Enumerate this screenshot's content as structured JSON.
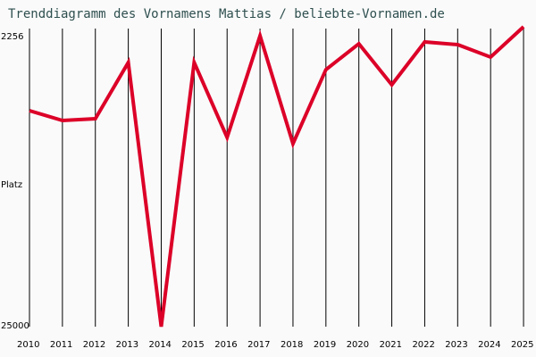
{
  "title": "Trenddiagramm des Vornamens Mattias / beliebte-Vornamen.de",
  "colors": {
    "line": "#dc0028",
    "grid": "#000000",
    "title": "#2f4f4f",
    "background": "#fafafa"
  },
  "chart_data": {
    "type": "line",
    "title": "Trenddiagramm des Vornamens Mattias / beliebte-Vornamen.de",
    "xlabel": "",
    "ylabel": "Platz",
    "y_inverted": true,
    "ylim": [
      25000,
      2256
    ],
    "y_ticks": [
      "2256",
      "25000"
    ],
    "categories": [
      "2010",
      "2011",
      "2012",
      "2013",
      "2014",
      "2015",
      "2016",
      "2017",
      "2018",
      "2019",
      "2020",
      "2021",
      "2022",
      "2023",
      "2024",
      "2025"
    ],
    "series": [
      {
        "name": "Mattias",
        "values": [
          8116,
          8884,
          8745,
          4349,
          25000,
          4349,
          10209,
          2256,
          10697,
          4907,
          2884,
          6093,
          2744,
          2954,
          3930,
          1560
        ]
      }
    ],
    "grid": "vertical",
    "legend": "none"
  }
}
